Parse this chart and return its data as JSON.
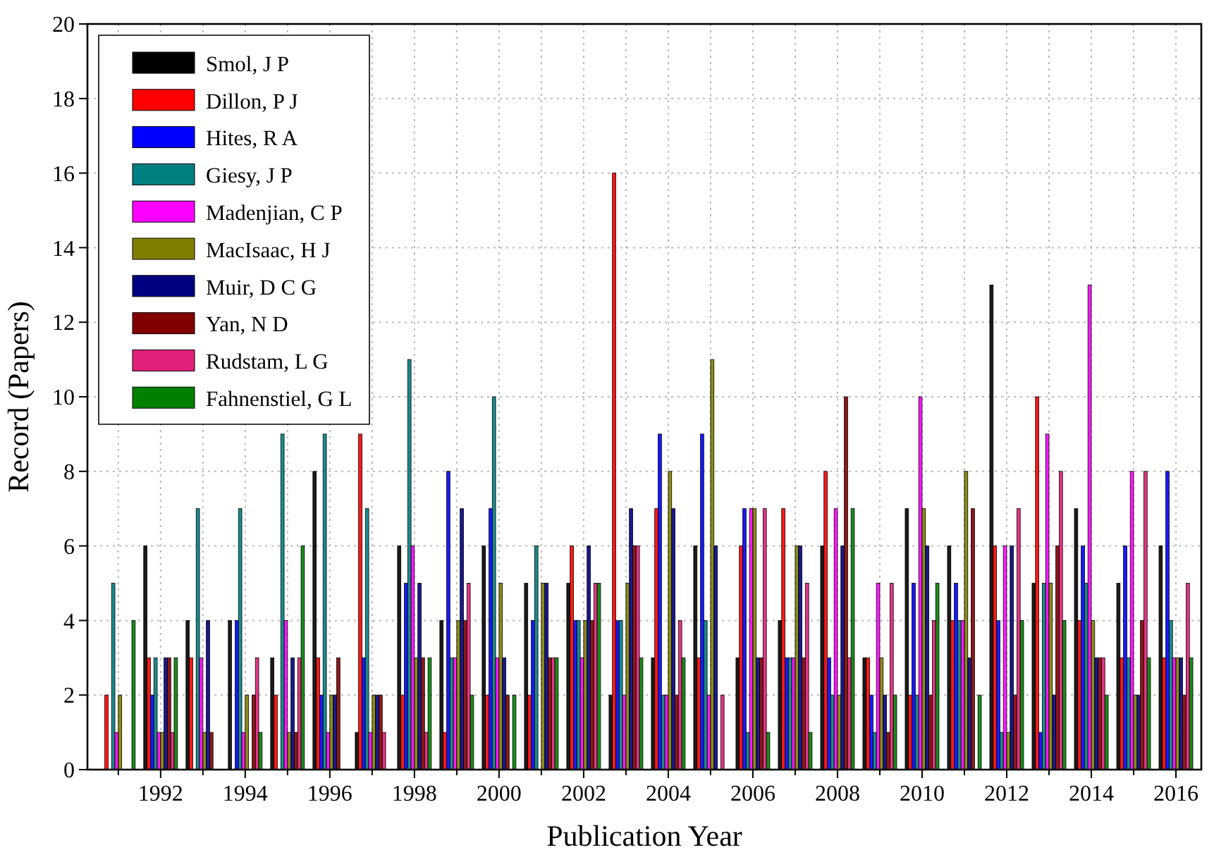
{
  "chart_data": {
    "type": "bar",
    "xlabel": "Publication Year",
    "ylabel": "Record (Papers)",
    "x": [
      1991,
      1992,
      1993,
      1994,
      1995,
      1996,
      1997,
      1998,
      1999,
      2000,
      2001,
      2002,
      2003,
      2004,
      2005,
      2006,
      2007,
      2008,
      2009,
      2010,
      2011,
      2012,
      2013,
      2014,
      2015,
      2016
    ],
    "series": [
      {
        "name": "Smol, J P",
        "color": "#000000",
        "values": [
          0,
          6,
          4,
          4,
          3,
          8,
          1,
          6,
          4,
          6,
          5,
          5,
          2,
          3,
          6,
          3,
          4,
          6,
          3,
          7,
          6,
          13,
          5,
          7,
          5,
          6
        ]
      },
      {
        "name": "Dillon, P J",
        "color": "#ff0000",
        "values": [
          2,
          3,
          3,
          0,
          2,
          3,
          9,
          2,
          1,
          2,
          2,
          6,
          16,
          7,
          3,
          6,
          7,
          8,
          3,
          2,
          4,
          6,
          10,
          4,
          3,
          3
        ]
      },
      {
        "name": "Hites, R A",
        "color": "#0000ff",
        "values": [
          0,
          2,
          0,
          4,
          0,
          2,
          3,
          5,
          8,
          7,
          4,
          4,
          4,
          9,
          9,
          7,
          3,
          3,
          2,
          5,
          5,
          4,
          1,
          6,
          6,
          8
        ]
      },
      {
        "name": "Giesy, J P",
        "color": "#008080",
        "values": [
          5,
          3,
          7,
          7,
          9,
          9,
          7,
          11,
          3,
          10,
          6,
          4,
          4,
          2,
          4,
          1,
          3,
          2,
          1,
          2,
          4,
          1,
          5,
          5,
          3,
          4
        ]
      },
      {
        "name": "Madenjian, C P",
        "color": "#ff00ff",
        "values": [
          1,
          1,
          3,
          1,
          4,
          1,
          1,
          6,
          3,
          3,
          0,
          3,
          2,
          2,
          2,
          7,
          3,
          7,
          5,
          10,
          4,
          6,
          9,
          13,
          8,
          3
        ]
      },
      {
        "name": "MacIsaac, H J",
        "color": "#808000",
        "values": [
          2,
          1,
          1,
          2,
          1,
          2,
          2,
          3,
          4,
          5,
          5,
          4,
          5,
          8,
          11,
          7,
          6,
          2,
          3,
          7,
          8,
          1,
          5,
          4,
          2,
          3
        ]
      },
      {
        "name": "Muir, D C G",
        "color": "#000080",
        "values": [
          0,
          3,
          4,
          0,
          3,
          2,
          2,
          5,
          7,
          3,
          5,
          6,
          7,
          7,
          6,
          3,
          6,
          6,
          2,
          6,
          3,
          6,
          2,
          3,
          2,
          3
        ]
      },
      {
        "name": "Yan, N D",
        "color": "#800000",
        "values": [
          0,
          3,
          1,
          2,
          1,
          3,
          2,
          3,
          4,
          2,
          3,
          4,
          6,
          2,
          0,
          3,
          3,
          10,
          1,
          2,
          7,
          2,
          6,
          3,
          4,
          2
        ]
      },
      {
        "name": "Rudstam, L G",
        "color": "#e0207a",
        "values": [
          0,
          1,
          0,
          3,
          3,
          0,
          1,
          1,
          5,
          0,
          3,
          5,
          6,
          4,
          2,
          7,
          5,
          3,
          5,
          4,
          0,
          7,
          8,
          3,
          8,
          5
        ]
      },
      {
        "name": "Fahnenstiel, G L",
        "color": "#008000",
        "values": [
          4,
          3,
          0,
          1,
          6,
          0,
          0,
          3,
          2,
          2,
          3,
          5,
          3,
          3,
          0,
          1,
          1,
          7,
          2,
          5,
          2,
          4,
          4,
          2,
          3,
          3
        ]
      }
    ],
    "xlim": [
      1990.27,
      2016.6
    ],
    "xticks": [
      {
        "value": 1991,
        "label": null
      },
      1992,
      {
        "value": 1993,
        "label": null
      },
      1994,
      {
        "value": 1995,
        "label": null
      },
      1996,
      {
        "value": 1997,
        "label": null
      },
      1998,
      {
        "value": 1999,
        "label": null
      },
      2000,
      {
        "value": 2001,
        "label": null
      },
      2002,
      {
        "value": 2003,
        "label": null
      },
      2004,
      {
        "value": 2005,
        "label": null
      },
      2006,
      {
        "value": 2007,
        "label": null
      },
      2008,
      {
        "value": 2009,
        "label": null
      },
      2010,
      {
        "value": 2011,
        "label": null
      },
      2012,
      {
        "value": 2013,
        "label": null
      },
      2014,
      {
        "value": 2015,
        "label": null
      },
      2016
    ],
    "ylim": [
      0,
      20
    ],
    "yticks": [
      0,
      2,
      4,
      6,
      8,
      10,
      12,
      14,
      16,
      18,
      20
    ],
    "grid": true,
    "legend": "top left"
  }
}
